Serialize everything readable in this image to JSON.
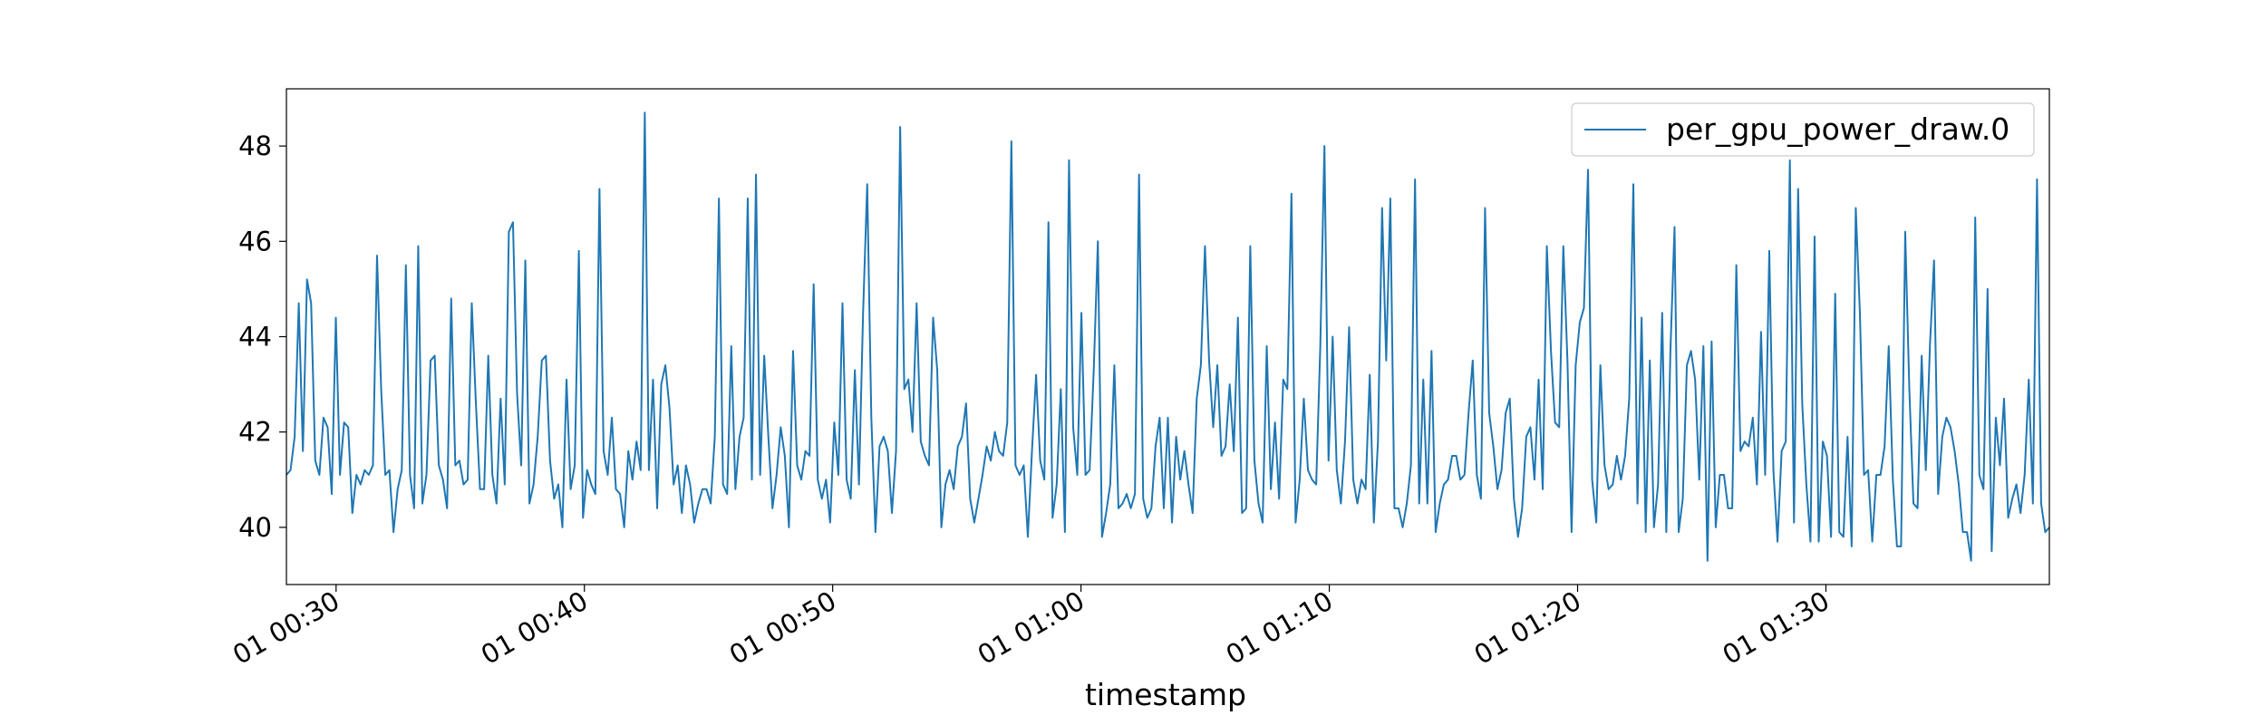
{
  "chart_data": {
    "type": "line",
    "title": "",
    "xlabel": "timestamp",
    "ylabel": "",
    "x_start": "01 00:28",
    "x_end": "01 01:39",
    "x_ticks": [
      "01 00:30",
      "01 00:40",
      "01 00:50",
      "01 01:00",
      "01 01:10",
      "01 01:20",
      "01 01:30"
    ],
    "y_ticks": [
      40,
      42,
      44,
      46,
      48
    ],
    "ylim": [
      38.8,
      49.2
    ],
    "grid": false,
    "legend_position": "top-right",
    "color": "#1f77b4",
    "series": [
      {
        "name": "per_gpu_power_draw.0",
        "values": [
          41.1,
          41.2,
          41.9,
          44.7,
          41.6,
          45.2,
          44.7,
          41.4,
          41.1,
          42.3,
          42.1,
          40.7,
          44.4,
          41.1,
          42.2,
          42.1,
          40.3,
          41.1,
          40.9,
          41.2,
          41.1,
          41.3,
          45.7,
          42.9,
          41.1,
          41.2,
          39.9,
          40.8,
          41.2,
          45.5,
          41.1,
          40.4,
          45.9,
          40.5,
          41.1,
          43.5,
          43.6,
          41.3,
          41.0,
          40.4,
          44.8,
          41.3,
          41.4,
          40.9,
          41.0,
          44.7,
          42.6,
          40.8,
          40.8,
          43.6,
          41.1,
          40.5,
          42.7,
          40.9,
          46.2,
          46.4,
          42.8,
          41.3,
          45.6,
          40.5,
          40.9,
          41.9,
          43.5,
          43.6,
          41.4,
          40.6,
          40.9,
          40.0,
          43.1,
          40.8,
          41.3,
          45.8,
          40.2,
          41.2,
          40.9,
          40.7,
          47.1,
          41.6,
          41.1,
          42.3,
          40.8,
          40.7,
          40.0,
          41.6,
          41.0,
          41.8,
          41.2,
          48.7,
          41.2,
          43.1,
          40.4,
          43.0,
          43.4,
          42.5,
          40.9,
          41.3,
          40.3,
          41.3,
          40.9,
          40.1,
          40.5,
          40.8,
          40.8,
          40.5,
          41.9,
          46.9,
          40.9,
          40.7,
          43.8,
          40.8,
          41.9,
          42.3,
          46.9,
          41.0,
          47.4,
          41.1,
          43.6,
          41.9,
          40.4,
          41.1,
          42.1,
          41.5,
          40.0,
          43.7,
          41.3,
          41.0,
          41.6,
          41.5,
          45.1,
          41.0,
          40.6,
          41.0,
          40.1,
          42.2,
          41.1,
          44.7,
          41.0,
          40.6,
          43.3,
          40.9,
          44.5,
          47.2,
          42.3,
          39.9,
          41.7,
          41.9,
          41.6,
          40.3,
          41.6,
          48.4,
          42.9,
          43.1,
          42.0,
          44.7,
          41.8,
          41.5,
          41.3,
          44.4,
          43.3,
          40.0,
          40.9,
          41.2,
          40.8,
          41.7,
          41.9,
          42.6,
          40.6,
          40.1,
          40.6,
          41.1,
          41.7,
          41.4,
          42.0,
          41.6,
          41.5,
          42.2,
          48.1,
          41.3,
          41.1,
          41.3,
          39.8,
          41.6,
          43.2,
          41.4,
          41.0,
          46.4,
          40.2,
          40.9,
          42.9,
          39.9,
          47.7,
          42.1,
          41.1,
          44.5,
          41.1,
          41.2,
          43.3,
          46.0,
          39.8,
          40.3,
          40.9,
          43.4,
          40.4,
          40.5,
          40.7,
          40.4,
          40.7,
          47.4,
          40.6,
          40.2,
          40.4,
          41.7,
          42.3,
          40.4,
          42.3,
          40.1,
          41.9,
          41.0,
          41.6,
          40.9,
          40.3,
          42.7,
          43.4,
          45.9,
          43.5,
          42.1,
          43.4,
          41.5,
          41.7,
          43.0,
          41.6,
          44.4,
          40.3,
          40.4,
          45.9,
          41.4,
          40.5,
          40.1,
          43.8,
          40.8,
          42.2,
          40.6,
          43.1,
          42.9,
          47.0,
          40.1,
          41.0,
          42.7,
          41.2,
          41.0,
          40.9,
          43.8,
          48.0,
          41.4,
          44.0,
          41.2,
          40.5,
          41.8,
          44.2,
          41.0,
          40.5,
          41.0,
          40.8,
          43.2,
          40.1,
          41.8,
          46.7,
          43.5,
          46.9,
          40.4,
          40.4,
          40.0,
          40.5,
          41.3,
          47.3,
          40.5,
          43.1,
          40.5,
          43.7,
          39.9,
          40.5,
          40.9,
          41.0,
          41.5,
          41.5,
          41.0,
          41.1,
          42.4,
          43.5,
          41.1,
          40.6,
          46.7,
          42.4,
          41.7,
          40.8,
          41.2,
          42.4,
          42.7,
          40.6,
          39.8,
          40.4,
          41.9,
          42.1,
          41.0,
          43.1,
          40.8,
          45.9,
          43.7,
          42.2,
          42.1,
          45.9,
          43.5,
          39.9,
          43.4,
          44.3,
          44.6,
          47.5,
          41.0,
          40.1,
          43.4,
          41.3,
          40.8,
          40.9,
          41.5,
          41.0,
          41.5,
          42.7,
          47.2,
          40.5,
          44.4,
          39.9,
          43.5,
          40.0,
          40.9,
          44.5,
          39.9,
          43.7,
          46.3,
          39.9,
          40.6,
          43.4,
          43.7,
          43.1,
          41.0,
          43.8,
          39.3,
          43.9,
          40.0,
          41.1,
          41.1,
          40.4,
          40.4,
          45.5,
          41.6,
          41.8,
          41.7,
          42.3,
          40.9,
          44.1,
          41.1,
          45.8,
          41.2,
          39.7,
          41.6,
          41.8,
          47.7,
          40.1,
          47.1,
          42.6,
          40.9,
          39.7,
          46.1,
          39.7,
          41.8,
          41.5,
          39.8,
          44.9,
          39.9,
          39.8,
          41.9,
          39.6,
          46.7,
          44.5,
          41.1,
          41.2,
          39.7,
          41.1,
          41.1,
          41.7,
          43.8,
          41.0,
          39.6,
          39.6,
          46.2,
          42.9,
          40.5,
          40.4,
          43.6,
          41.2,
          43.8,
          45.6,
          40.7,
          41.9,
          42.3,
          42.1,
          41.6,
          40.9,
          39.9,
          39.9,
          39.3,
          46.5,
          41.1,
          40.8,
          45.0,
          39.5,
          42.3,
          41.3,
          42.7,
          40.2,
          40.6,
          40.9,
          40.3,
          41.1,
          43.1,
          40.5,
          47.3,
          40.5,
          39.9,
          40.0
        ]
      }
    ]
  }
}
